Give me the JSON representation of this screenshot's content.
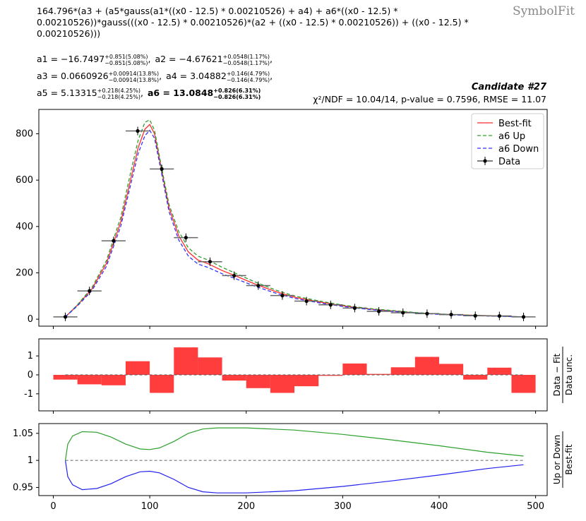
{
  "watermark": "SymbolFit",
  "formula": "164.796*(a3 + (a5*gauss(a1*((x0 - 12.5) * 0.00210526) + a4) + a6*((x0 - 12.5) * 0.00210526))*gauss(((x0 - 12.5) * 0.00210526)*(a2 + ((x0 - 12.5) * 0.00210526)) + ((x0 - 12.5) * 0.00210526)))",
  "params": [
    [
      {
        "name": "a1",
        "value": "−16.7497",
        "up": "+0.851(5.08%)",
        "down": "−0.851(5.08%)",
        "bold": false
      },
      {
        "name": "a2",
        "value": "−4.67621",
        "up": "+0.0548(1.17%)",
        "down": "−0.0548(1.17%)",
        "bold": false
      }
    ],
    [
      {
        "name": "a3",
        "value": "0.0660926",
        "up": "+0.00914(13.8%)",
        "down": "−0.00914(13.8%)",
        "bold": false
      },
      {
        "name": "a4",
        "value": "3.04882",
        "up": "+0.146(4.79%)",
        "down": "−0.146(4.79%)",
        "bold": false
      }
    ],
    [
      {
        "name": "a5",
        "value": "5.13315",
        "up": "+0.218(4.25%)",
        "down": "−0.218(4.25%)",
        "bold": false
      },
      {
        "name": "a6",
        "value": "13.0848",
        "up": "+0.826(6.31%)",
        "down": "−0.826(6.31%)",
        "bold": true
      }
    ]
  ],
  "candidate": "Candidate #27",
  "stats": {
    "chi2": "10.04/14",
    "pvalue": "0.7596",
    "rmse": "11.07"
  },
  "stats_text": "χ²/NDF = 10.04/14, p-value = 0.7596, RMSE = 11.07",
  "colors": {
    "best": "#ff2b2b",
    "up": "#2ca02c",
    "down": "#3333ff",
    "data": "#000000",
    "bars": "#ff3333",
    "ratio_up": "#2ca02c",
    "ratio_down": "#2222ee"
  },
  "chart_data": [
    {
      "type": "line",
      "panel": "main",
      "xlim": [
        -15,
        512
      ],
      "ylim": [
        -30,
        905
      ],
      "yticks": [
        0,
        200,
        400,
        600,
        800
      ],
      "legend": {
        "placement": "top-right",
        "entries": [
          "Best-fit",
          "a6 Up",
          "a6 Down",
          "Data"
        ]
      },
      "data_points": {
        "name": "Data",
        "x": [
          12.5,
          37.5,
          62.5,
          87.5,
          112.5,
          137.5,
          162.5,
          187.5,
          212.5,
          237.5,
          262.5,
          287.5,
          312.5,
          337.5,
          362.5,
          387.5,
          412.5,
          437.5,
          462.5,
          487.5
        ],
        "y": [
          10,
          122,
          338,
          812,
          648,
          352,
          248,
          188,
          145,
          102,
          78,
          62,
          48,
          34,
          28,
          24,
          20,
          15,
          14,
          10
        ],
        "xerr": 12.5
      },
      "series": [
        {
          "name": "Best-fit",
          "x": [
            12.5,
            25,
            40,
            55,
            70,
            80,
            88,
            95,
            100,
            105,
            112,
            120,
            130,
            140,
            150,
            160,
            175,
            190,
            210,
            230,
            250,
            275,
            300,
            325,
            350,
            375,
            400,
            425,
            450,
            487.5
          ],
          "y": [
            10,
            60,
            130,
            240,
            420,
            600,
            740,
            820,
            840,
            800,
            650,
            480,
            360,
            290,
            255,
            240,
            210,
            185,
            150,
            120,
            95,
            75,
            58,
            45,
            36,
            28,
            22,
            18,
            15,
            10
          ]
        },
        {
          "name": "a6 Up",
          "x": [
            12.5,
            25,
            40,
            55,
            70,
            80,
            88,
            95,
            100,
            105,
            112,
            120,
            130,
            140,
            150,
            160,
            175,
            190,
            210,
            230,
            250,
            275,
            300,
            325,
            350,
            375,
            400,
            425,
            450,
            487.5
          ],
          "y": [
            10,
            62,
            136,
            252,
            440,
            630,
            772,
            850,
            860,
            815,
            660,
            495,
            378,
            308,
            272,
            256,
            224,
            196,
            159,
            127,
            100,
            79,
            61,
            47,
            38,
            29,
            23,
            18,
            15,
            10
          ]
        },
        {
          "name": "a6 Down",
          "x": [
            12.5,
            25,
            40,
            55,
            70,
            80,
            88,
            95,
            100,
            105,
            112,
            120,
            130,
            140,
            150,
            160,
            175,
            190,
            210,
            230,
            250,
            275,
            300,
            325,
            350,
            375,
            400,
            425,
            450,
            487.5
          ],
          "y": [
            10,
            57,
            123,
            227,
            402,
            577,
            715,
            792,
            815,
            780,
            635,
            464,
            342,
            272,
            238,
            224,
            196,
            173,
            141,
            113,
            90,
            71,
            55,
            43,
            34,
            27,
            21,
            17,
            14,
            10
          ]
        }
      ]
    },
    {
      "type": "bar",
      "panel": "pulls",
      "ylabel": "Data − Fit / Data unc.",
      "ylim": [
        -1.9,
        1.9
      ],
      "yticks": [
        -1,
        0,
        1
      ],
      "x": [
        12.5,
        37.5,
        62.5,
        87.5,
        112.5,
        137.5,
        162.5,
        187.5,
        212.5,
        237.5,
        262.5,
        287.5,
        312.5,
        337.5,
        362.5,
        387.5,
        412.5,
        437.5,
        462.5,
        487.5
      ],
      "values": [
        -0.25,
        -0.5,
        -0.55,
        0.72,
        -0.95,
        1.45,
        0.92,
        -0.3,
        -0.7,
        -0.95,
        -0.6,
        -0.05,
        0.6,
        0.05,
        0.4,
        0.95,
        0.58,
        -0.25,
        0.38,
        -0.95
      ]
    },
    {
      "type": "line",
      "panel": "ratio",
      "ylabel": "Up or Down / Best-fit",
      "ylim": [
        0.935,
        1.068
      ],
      "yticks": [
        0.95,
        1,
        1.05
      ],
      "yticklabels": [
        "0.95",
        "1",
        "1.05"
      ],
      "xticks": [
        0,
        100,
        200,
        300,
        400,
        500
      ],
      "series": [
        {
          "name": "a6 Up / Best-fit",
          "x": [
            12.5,
            15,
            20,
            30,
            45,
            60,
            75,
            90,
            100,
            110,
            125,
            140,
            155,
            170,
            200,
            250,
            300,
            350,
            400,
            450,
            487.5
          ],
          "y": [
            1.0,
            1.03,
            1.045,
            1.053,
            1.052,
            1.043,
            1.03,
            1.021,
            1.02,
            1.023,
            1.035,
            1.05,
            1.058,
            1.06,
            1.06,
            1.056,
            1.048,
            1.038,
            1.027,
            1.015,
            1.008
          ]
        },
        {
          "name": "a6 Down / Best-fit",
          "x": [
            12.5,
            15,
            20,
            30,
            45,
            60,
            75,
            90,
            100,
            110,
            125,
            140,
            155,
            170,
            200,
            250,
            300,
            350,
            400,
            450,
            487.5
          ],
          "y": [
            1.0,
            0.97,
            0.955,
            0.946,
            0.948,
            0.957,
            0.97,
            0.979,
            0.98,
            0.977,
            0.965,
            0.95,
            0.942,
            0.94,
            0.94,
            0.944,
            0.952,
            0.962,
            0.973,
            0.985,
            0.992
          ]
        },
        {
          "name": "reference",
          "x": [
            12.5,
            487.5
          ],
          "y": [
            1,
            1
          ]
        }
      ]
    }
  ]
}
